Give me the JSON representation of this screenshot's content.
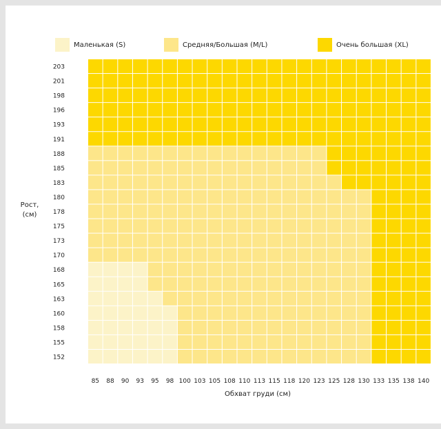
{
  "chart_data": {
    "type": "heatmap",
    "title": "",
    "xlabel": "Обхват груди (см)",
    "ylabel_lines": [
      "Рост,",
      "(см)"
    ],
    "x": [
      "85",
      "88",
      "90",
      "93",
      "95",
      "98",
      "100",
      "103",
      "105",
      "108",
      "110",
      "113",
      "115",
      "118",
      "120",
      "123",
      "125",
      "128",
      "130",
      "133",
      "135",
      "138",
      "140"
    ],
    "y": [
      "203",
      "201",
      "198",
      "196",
      "193",
      "191",
      "188",
      "185",
      "183",
      "180",
      "178",
      "175",
      "173",
      "170",
      "168",
      "165",
      "163",
      "160",
      "158",
      "155",
      "152"
    ],
    "categories": [
      {
        "code": "S",
        "label": "Маленькая (S)",
        "color": "#fcf3c8"
      },
      {
        "code": "ML",
        "label": "Средняя/Большая (M/L)",
        "color": "#fde68a"
      },
      {
        "code": "XL",
        "label": "Очень большая (XL)",
        "color": "#fdd800"
      }
    ],
    "grid": true,
    "legend_position": "top",
    "rows": [
      "XL XL XL XL XL XL XL XL XL XL XL XL XL XL XL XL XL XL XL XL XL XL XL",
      "XL XL XL XL XL XL XL XL XL XL XL XL XL XL XL XL XL XL XL XL XL XL XL",
      "XL XL XL XL XL XL XL XL XL XL XL XL XL XL XL XL XL XL XL XL XL XL XL",
      "XL XL XL XL XL XL XL XL XL XL XL XL XL XL XL XL XL XL XL XL XL XL XL",
      "XL XL XL XL XL XL XL XL XL XL XL XL XL XL XL XL XL XL XL XL XL XL XL",
      "XL XL XL XL XL XL XL XL XL XL XL XL XL XL XL XL XL XL XL XL XL XL XL",
      "ML ML ML ML ML ML ML ML ML ML ML ML ML ML ML ML XL XL XL XL XL XL XL",
      "ML ML ML ML ML ML ML ML ML ML ML ML ML ML ML ML XL XL XL XL XL XL XL",
      "ML ML ML ML ML ML ML ML ML ML ML ML ML ML ML ML ML XL XL XL XL XL XL",
      "ML ML ML ML ML ML ML ML ML ML ML ML ML ML ML ML ML ML ML XL XL XL XL",
      "ML ML ML ML ML ML ML ML ML ML ML ML ML ML ML ML ML ML ML XL XL XL XL",
      "ML ML ML ML ML ML ML ML ML ML ML ML ML ML ML ML ML ML ML XL XL XL XL",
      "ML ML ML ML ML ML ML ML ML ML ML ML ML ML ML ML ML ML ML XL XL XL XL",
      "ML ML ML ML ML ML ML ML ML ML ML ML ML ML ML ML ML ML ML XL XL XL XL",
      "S S S S ML ML ML ML ML ML ML ML ML ML ML ML ML ML ML XL XL XL XL",
      "S S S S ML ML ML ML ML ML ML ML ML ML ML ML ML ML ML XL XL XL XL",
      "S S S S S ML ML ML ML ML ML ML ML ML ML ML ML ML ML XL XL XL XL",
      "S S S S S S ML ML ML ML ML ML ML ML ML ML ML ML ML XL XL XL XL",
      "S S S S S S ML ML ML ML ML ML ML ML ML ML ML ML ML XL XL XL XL",
      "S S S S S S ML ML ML ML ML ML ML ML ML ML ML ML ML XL XL XL XL",
      "S S S S S S ML ML ML ML ML ML ML ML ML ML ML ML ML XL XL XL XL"
    ]
  }
}
